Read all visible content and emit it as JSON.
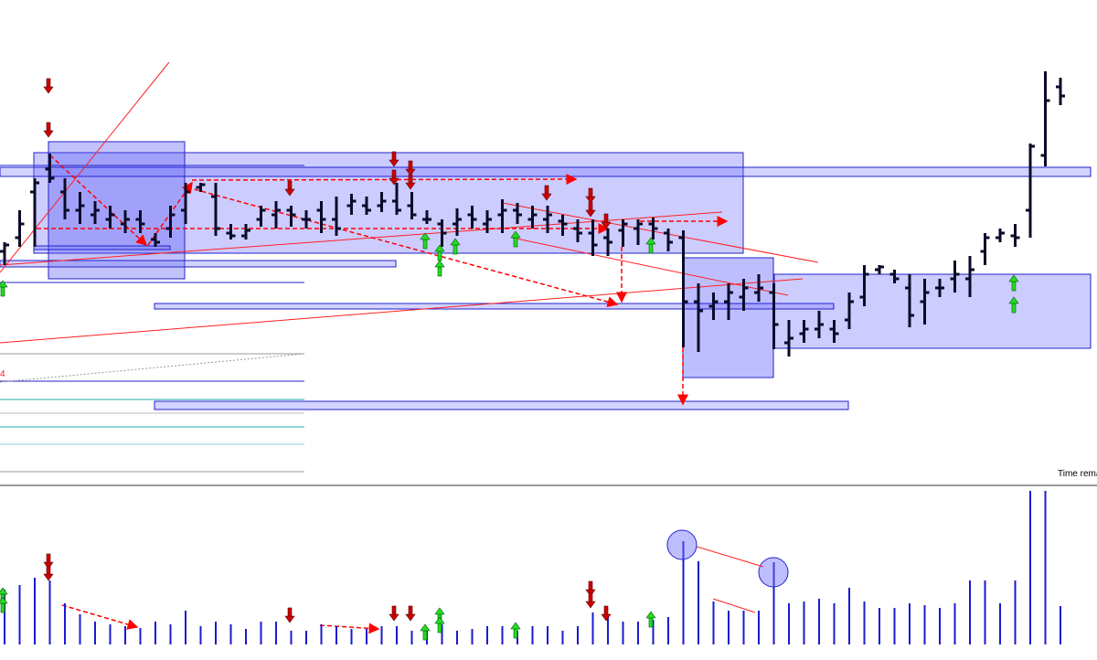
{
  "chart_data": [
    {
      "type": "ohlc",
      "color": "#0a0a2a",
      "ylim": [
        0,
        530
      ],
      "annotations": [
        "4",
        "Time rema"
      ],
      "series": {
        "open": [
          255,
          270,
          320,
          345,
          320,
          300,
          295,
          290,
          285,
          290,
          268,
          280,
          300,
          325,
          315,
          275,
          272,
          290,
          295,
          300,
          290,
          300,
          290,
          305,
          305,
          305,
          310,
          305,
          290,
          285,
          285,
          295,
          285,
          295,
          300,
          290,
          290,
          288,
          280,
          275,
          270,
          278,
          280,
          285,
          275,
          270,
          200,
          195,
          200,
          205,
          210,
          210,
          155,
          165,
          170,
          170,
          180,
          205,
          235,
          230,
          215,
          200,
          215,
          225,
          225,
          255,
          270,
          272,
          300,
          360,
          435
        ],
        "high": [
          265,
          300,
          335,
          362,
          335,
          320,
          310,
          305,
          300,
          300,
          275,
          305,
          330,
          330,
          330,
          285,
          285,
          305,
          310,
          305,
          300,
          310,
          315,
          318,
          315,
          320,
          330,
          320,
          300,
          290,
          302,
          305,
          300,
          312,
          308,
          305,
          305,
          295,
          290,
          290,
          280,
          290,
          290,
          292,
          280,
          278,
          220,
          210,
          220,
          225,
          230,
          220,
          180,
          180,
          190,
          180,
          210,
          240,
          240,
          235,
          230,
          225,
          225,
          245,
          250,
          275,
          280,
          285,
          373,
          452,
          445
        ],
        "low": [
          240,
          260,
          260,
          330,
          290,
          285,
          285,
          280,
          275,
          275,
          260,
          270,
          285,
          320,
          272,
          268,
          268,
          282,
          280,
          282,
          280,
          275,
          272,
          295,
          295,
          298,
          295,
          290,
          285,
          260,
          272,
          280,
          275,
          275,
          285,
          280,
          275,
          272,
          265,
          250,
          250,
          260,
          262,
          268,
          255,
          150,
          145,
          180,
          180,
          190,
          200,
          148,
          140,
          155,
          160,
          155,
          170,
          195,
          230,
          220,
          172,
          175,
          205,
          210,
          205,
          240,
          265,
          260,
          270,
          348,
          415
        ],
        "close": [
          262,
          285,
          330,
          335,
          300,
          305,
          300,
          295,
          290,
          285,
          265,
          295,
          320,
          328,
          280,
          272,
          278,
          300,
          300,
          295,
          290,
          290,
          280,
          310,
          300,
          310,
          300,
          295,
          290,
          275,
          290,
          290,
          290,
          300,
          295,
          295,
          295,
          285,
          275,
          262,
          265,
          285,
          285,
          280,
          265,
          200,
          190,
          200,
          210,
          215,
          215,
          175,
          160,
          170,
          175,
          165,
          200,
          230,
          238,
          225,
          185,
          210,
          215,
          230,
          235,
          270,
          275,
          270,
          370,
          420,
          425
        ]
      }
    },
    {
      "type": "bar",
      "color": "#1a1ad0",
      "ylim": [
        0,
        170
      ],
      "values": [
        60,
        65,
        73,
        70,
        45,
        33,
        25,
        22,
        20,
        18,
        25,
        22,
        37,
        20,
        25,
        22,
        17,
        25,
        25,
        15,
        15,
        22,
        20,
        17,
        17,
        20,
        20,
        15,
        15,
        22,
        15,
        17,
        20,
        20,
        15,
        20,
        20,
        15,
        20,
        35,
        32,
        25,
        25,
        27,
        30,
        113,
        91,
        47,
        37,
        37,
        37,
        90,
        45,
        47,
        50,
        45,
        62,
        47,
        40,
        40,
        45,
        43,
        40,
        45,
        70,
        70,
        45,
        70,
        168,
        168,
        42
      ]
    }
  ]
}
